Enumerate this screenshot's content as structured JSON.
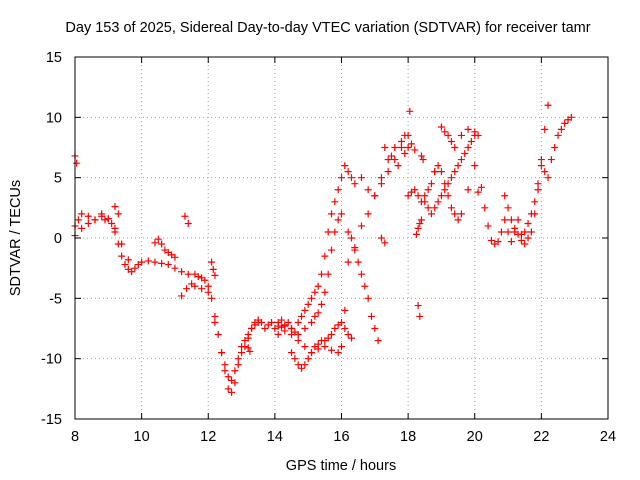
{
  "chart_data": {
    "type": "scatter",
    "title": "Day 153 of 2025, Sidereal Day-to-day VTEC variation (SDTVAR) for receiver tamr",
    "xlabel": "GPS time / hours",
    "ylabel": "SDTVAR / TECUs",
    "xlim": [
      8,
      24
    ],
    "ylim": [
      -15,
      15
    ],
    "xticks": [
      8,
      10,
      12,
      14,
      16,
      18,
      20,
      22,
      24
    ],
    "yticks": [
      -15,
      -10,
      -5,
      0,
      5,
      10,
      15
    ],
    "xtick_labels": [
      "8",
      "10",
      "12",
      "14",
      "16",
      "18",
      "20",
      "22",
      "24"
    ],
    "ytick_labels": [
      "-15",
      "-10",
      "-5",
      "0",
      "5",
      "10",
      "15"
    ],
    "grid": true,
    "marker": "+",
    "color": "#ff0000",
    "series": [
      {
        "x": [
          8.0,
          8.1,
          8.2,
          8.4,
          8.6,
          8.8,
          8.9,
          9.0,
          9.1,
          9.2,
          9.3,
          9.4,
          9.5,
          9.6,
          9.7,
          9.8,
          9.9,
          10.0,
          10.2,
          10.4,
          10.6,
          10.8,
          11.0,
          11.2,
          11.4,
          11.6,
          11.7,
          11.8,
          11.9,
          12.0,
          12.1,
          12.2,
          12.3,
          12.4,
          12.5,
          12.6,
          12.7,
          12.8,
          12.9,
          13.0,
          13.1,
          13.2,
          13.3,
          13.4,
          13.5
        ],
        "y": [
          1.0,
          1.5,
          2.0,
          1.8,
          1.5,
          2.0,
          1.5,
          1.6,
          1.2,
          0.5,
          -0.5,
          -1.5,
          -2.2,
          -2.6,
          -2.8,
          -2.5,
          -2.2,
          -2.0,
          -1.9,
          -2.0,
          -2.1,
          -2.2,
          -2.5,
          -2.8,
          -3.0,
          -3.0,
          -3.2,
          -3.3,
          -3.5,
          -4.0,
          -5.0,
          -6.5,
          -8.0,
          -9.5,
          -11.0,
          -12.5,
          -12.8,
          -12.0,
          -10.5,
          -9.5,
          -9.0,
          -8.3,
          -7.5,
          -7.0,
          -6.8
        ]
      },
      {
        "x": [
          8.0,
          8.2,
          8.4,
          8.6,
          8.8,
          9.0,
          9.2,
          9.4,
          9.6
        ],
        "y": [
          0.2,
          0.8,
          1.2,
          1.5,
          1.8,
          1.6,
          0.8,
          -0.5,
          -1.8
        ]
      },
      {
        "x": [
          11.2,
          11.35,
          11.5,
          11.6,
          11.8,
          12.0,
          12.2,
          12.4,
          12.5,
          12.6,
          12.7,
          12.8,
          12.9,
          13.0,
          13.1,
          13.2,
          13.3,
          13.4,
          13.5
        ],
        "y": [
          -4.8,
          -4.2,
          -3.8,
          -4.0,
          -4.2,
          -4.5,
          -7.0,
          -9.5,
          -10.5,
          -11.5,
          -11.8,
          -11.0,
          -10.0,
          -9.0,
          -8.5,
          -8.0,
          -7.5,
          -7.2,
          -7.0
        ]
      },
      {
        "x": [
          10.4,
          10.5,
          10.6,
          10.7,
          10.8,
          10.9,
          11.0
        ],
        "y": [
          -0.4,
          -0.1,
          -0.5,
          -1.0,
          -1.2,
          -1.4,
          -1.6
        ]
      },
      {
        "x": [
          11.3,
          11.4
        ],
        "y": [
          1.8,
          1.2
        ]
      },
      {
        "x": [
          8.0,
          8.05
        ],
        "y": [
          6.8,
          6.2
        ]
      },
      {
        "x": [
          9.2,
          9.3
        ],
        "y": [
          2.6,
          2.0
        ]
      },
      {
        "x": [
          12.1,
          12.15,
          12.2
        ],
        "y": [
          -2.0,
          -2.6,
          -3.1
        ]
      },
      {
        "x": [
          13.2,
          13.25
        ],
        "y": [
          -9.1,
          -9.4
        ]
      },
      {
        "x": [
          13.6,
          13.7,
          13.8,
          13.9,
          14.0,
          14.1,
          14.2,
          14.3,
          14.4,
          14.5,
          14.6,
          14.7,
          14.8,
          14.9,
          15.0,
          15.1,
          15.2,
          15.3,
          15.4,
          15.5,
          15.6,
          15.7,
          15.8,
          15.9,
          16.0,
          16.1,
          16.2,
          16.3,
          16.4,
          16.6,
          16.8,
          17.0,
          17.2,
          17.4,
          17.6,
          17.8,
          18.0,
          18.05
        ],
        "y": [
          -7.0,
          -7.5,
          -7.2,
          -7.0,
          -7.5,
          -7.0,
          -6.8,
          -7.2,
          -7.0,
          -7.5,
          -7.8,
          -7.0,
          -6.5,
          -6.0,
          -5.5,
          -5.0,
          -4.5,
          -4.0,
          -3.0,
          -1.5,
          0.5,
          2.0,
          3.0,
          4.0,
          5.0,
          6.0,
          5.5,
          5.0,
          4.5,
          5.0,
          4.0,
          3.5,
          4.5,
          5.5,
          6.5,
          7.5,
          8.5,
          10.5
        ]
      },
      {
        "x": [
          14.5,
          14.6,
          14.7,
          14.8,
          14.9,
          15.0,
          15.1,
          15.2,
          15.3,
          15.4,
          15.5,
          15.6,
          15.7,
          15.8,
          15.9,
          16.0,
          16.1,
          16.2,
          16.3
        ],
        "y": [
          -9.5,
          -10.0,
          -10.5,
          -10.8,
          -10.5,
          -10.0,
          -9.5,
          -9.0,
          -8.8,
          -8.5,
          -8.5,
          -8.3,
          -8.0,
          -7.5,
          -7.2,
          -7.0,
          -7.5,
          -8.0,
          -8.3
        ]
      },
      {
        "x": [
          14.1,
          14.3,
          14.5,
          14.7,
          14.9,
          15.1,
          15.3,
          15.5,
          15.7,
          15.9,
          16.0,
          16.1,
          16.2,
          16.3,
          16.4,
          16.5,
          16.6,
          16.7,
          16.8,
          16.9,
          17.0,
          17.1
        ],
        "y": [
          -8.0,
          -7.7,
          -7.5,
          -8.0,
          -9.0,
          -9.5,
          -9.2,
          -9.0,
          -9.3,
          -9.5,
          -9.0,
          -6.0,
          -2.0,
          0.0,
          -1.0,
          -2.0,
          -3.0,
          -4.0,
          -5.0,
          -6.5,
          -7.5,
          -8.5
        ]
      },
      {
        "x": [
          14.1,
          14.2,
          14.3,
          14.5,
          14.7,
          14.9,
          15.1,
          15.2,
          15.3,
          15.4,
          15.5,
          15.6,
          15.7,
          15.8,
          15.9,
          16.0,
          16.2,
          16.4,
          16.6,
          16.8,
          17.0,
          17.2,
          17.4,
          17.6,
          17.8,
          17.9
        ],
        "y": [
          -7.3,
          -7.4,
          -7.3,
          -8.0,
          -8.5,
          -7.5,
          -7.0,
          -6.5,
          -6.2,
          -5.5,
          -4.5,
          -3.0,
          -1.0,
          0.5,
          1.5,
          2.0,
          0.5,
          -0.8,
          1.0,
          2.0,
          3.5,
          5.0,
          6.5,
          7.5,
          8.0,
          8.5
        ]
      },
      {
        "x": [
          17.3,
          17.5,
          17.7,
          17.9,
          18.0,
          18.1,
          18.2
        ],
        "y": [
          7.5,
          6.8,
          6.0,
          7.0,
          7.5,
          7.8,
          7.3
        ]
      },
      {
        "x": [
          17.2,
          17.3
        ],
        "y": [
          0.0,
          -0.4
        ]
      },
      {
        "x": [
          18.0,
          18.1,
          18.2,
          18.3,
          18.4,
          18.5,
          18.6,
          18.7,
          18.8
        ],
        "y": [
          3.5,
          3.8,
          4.0,
          3.5,
          3.0,
          3.5,
          4.0,
          4.5,
          5.5
        ]
      },
      {
        "x": [
          18.25,
          18.3,
          18.35,
          18.4
        ],
        "y": [
          0.3,
          0.8,
          1.2,
          1.5
        ]
      },
      {
        "x": [
          18.3,
          18.35
        ],
        "y": [
          -5.6,
          -6.5
        ]
      },
      {
        "x": [
          18.4,
          18.45
        ],
        "y": [
          6.8,
          6.5
        ]
      },
      {
        "x": [
          18.5,
          18.6,
          18.7,
          18.8,
          18.9,
          19.0,
          19.1,
          19.2,
          19.3,
          19.4,
          19.5,
          19.6,
          19.7,
          19.8,
          19.9,
          20.0
        ],
        "y": [
          3.0,
          2.5,
          2.0,
          2.5,
          3.0,
          3.5,
          4.0,
          4.5,
          5.0,
          5.5,
          6.0,
          6.5,
          7.0,
          7.5,
          8.0,
          8.5
        ]
      },
      {
        "x": [
          18.8,
          18.9,
          19.0,
          19.1,
          19.2,
          19.3,
          19.4,
          19.5,
          19.6,
          19.8,
          20.0
        ],
        "y": [
          5.5,
          6.0,
          5.5,
          4.5,
          3.5,
          2.5,
          2.0,
          1.5,
          2.0,
          4.0,
          6.0
        ]
      },
      {
        "x": [
          19.0,
          19.1,
          19.2,
          19.3,
          19.4,
          19.6,
          19.8,
          20.0,
          20.1
        ],
        "y": [
          9.2,
          8.8,
          8.5,
          8.0,
          7.5,
          8.5,
          9.0,
          8.8,
          8.5
        ]
      },
      {
        "x": [
          20.1,
          20.2,
          20.3,
          20.4,
          20.5,
          20.6,
          20.7,
          20.8,
          20.9,
          21.0,
          21.1,
          21.2,
          21.3,
          21.4,
          21.5,
          21.6,
          21.7,
          21.8,
          21.9,
          22.0,
          22.1,
          22.2
        ],
        "y": [
          3.8,
          4.2,
          2.5,
          1.0,
          -0.2,
          -0.5,
          -0.3,
          0.5,
          1.5,
          0.5,
          -0.3,
          0.5,
          1.5,
          0.3,
          -0.5,
          0.0,
          0.5,
          2.0,
          4.0,
          6.5,
          9.0,
          11.0
        ]
      },
      {
        "x": [
          20.9,
          21.0,
          21.1,
          21.2,
          21.3,
          21.4,
          21.5,
          21.6,
          21.7,
          21.8,
          21.9,
          22.0,
          22.1,
          22.2,
          22.3,
          22.4,
          22.5,
          22.6,
          22.7,
          22.8,
          22.9
        ],
        "y": [
          3.5,
          2.5,
          1.5,
          0.8,
          0.3,
          -0.2,
          0.5,
          1.2,
          2.0,
          3.0,
          4.5,
          6.0,
          5.5,
          5.0,
          6.5,
          7.5,
          8.5,
          9.0,
          9.5,
          9.8,
          10.0
        ]
      }
    ]
  }
}
